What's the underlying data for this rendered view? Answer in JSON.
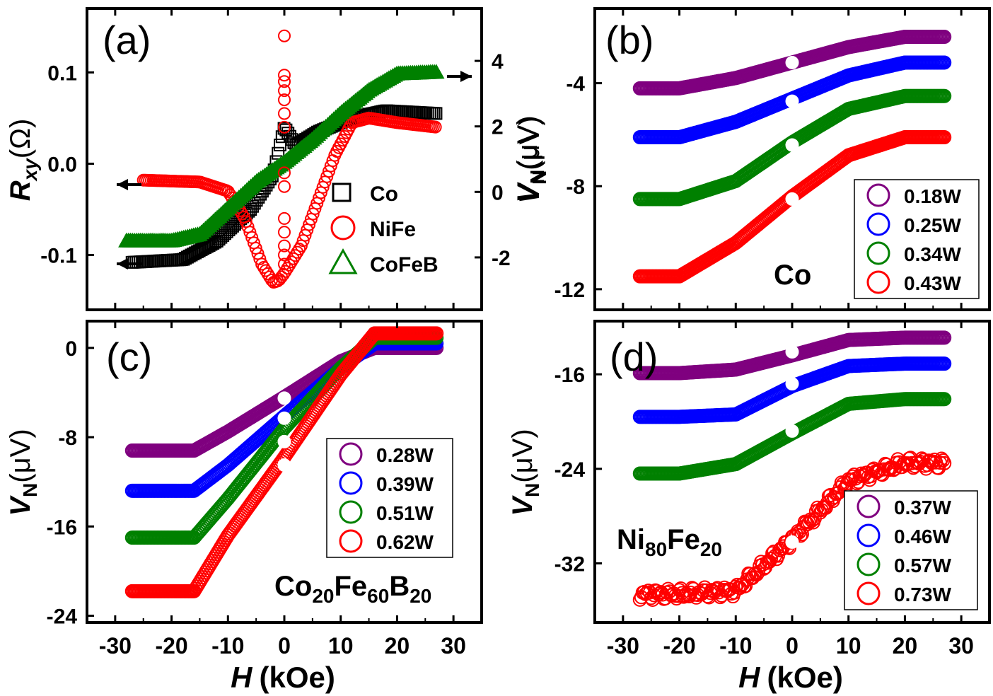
{
  "figure": {
    "shared_xlabel": "H",
    "shared_xunit": "(kOe)"
  },
  "chart_data": [
    {
      "panel": "a",
      "type": "scatter",
      "label": "(a)",
      "xlim": [
        -35,
        35
      ],
      "ylim": [
        -0.16,
        0.17
      ],
      "y2lim": [
        -3.6,
        5.6
      ],
      "ylabel_main": "R",
      "ylabel_sub": "xy",
      "ylabel_unit": "(Ω)",
      "y2label_main": "V",
      "y2label_sub": "N",
      "y2label_unit": "(μV)",
      "yticks": [
        "-0.1",
        "0.0",
        "0.1"
      ],
      "yticks_values": [
        -0.1,
        0.0,
        0.1
      ],
      "y2ticks": [
        "-2",
        "0",
        "2",
        "4"
      ],
      "y2ticks_values": [
        -2,
        0,
        2,
        4
      ],
      "legend_position": "bottom-right",
      "series": [
        {
          "name": "Co",
          "marker": "square",
          "color": "#000000",
          "axis": "left",
          "x": [
            -27,
            -18,
            -12,
            -6,
            -2,
            0,
            2,
            6,
            12,
            18,
            27
          ],
          "y": [
            -0.108,
            -0.105,
            -0.085,
            -0.05,
            -0.012,
            0.04,
            0.02,
            0.035,
            0.05,
            0.058,
            0.055
          ]
        },
        {
          "name": "NiFe",
          "marker": "circle",
          "color": "#ff0000",
          "axis": "left",
          "x": [
            -25,
            -15,
            -10,
            -7,
            -4,
            -2,
            -1,
            0,
            1,
            3,
            6,
            9,
            12,
            15,
            20,
            27
          ],
          "y": [
            -0.018,
            -0.02,
            -0.03,
            -0.06,
            -0.11,
            -0.13,
            -0.128,
            -0.12,
            -0.11,
            -0.09,
            -0.04,
            0.01,
            0.045,
            0.05,
            0.045,
            0.04
          ]
        },
        {
          "name": "CoFeB",
          "marker": "triangle",
          "color": "#008000",
          "axis": "right",
          "x": [
            -28,
            -20,
            -15,
            -10,
            -5,
            0,
            5,
            10,
            15,
            20,
            27
          ],
          "y": [
            -1.5,
            -1.5,
            -1.3,
            -0.5,
            0.3,
            0.9,
            1.6,
            2.4,
            3.1,
            3.6,
            3.65
          ]
        }
      ]
    },
    {
      "panel": "b",
      "type": "scatter",
      "label": "(b)",
      "annotation": "Co",
      "xlim": [
        -35,
        35
      ],
      "ylim": [
        -12.8,
        -1.1
      ],
      "ylabel_main": "V",
      "ylabel_sub": "N",
      "ylabel_unit": "(μV)",
      "yticks": [
        "-4",
        "-8",
        "-12"
      ],
      "yticks_values": [
        -4,
        -8,
        -12
      ],
      "legend_position": "bottom-right",
      "series": [
        {
          "name": "0.18W",
          "color": "#7f007f",
          "x": [
            -27,
            -20,
            -10,
            0,
            10,
            20,
            27
          ],
          "y": [
            -4.2,
            -4.2,
            -3.8,
            -3.2,
            -2.6,
            -2.2,
            -2.2
          ]
        },
        {
          "name": "0.25W",
          "color": "#0000ff",
          "x": [
            -27,
            -20,
            -10,
            0,
            10,
            20,
            27
          ],
          "y": [
            -6.1,
            -6.1,
            -5.5,
            -4.6,
            -3.7,
            -3.2,
            -3.2
          ]
        },
        {
          "name": "0.34W",
          "color": "#008000",
          "x": [
            -27,
            -20,
            -10,
            0,
            10,
            20,
            27
          ],
          "y": [
            -8.5,
            -8.5,
            -7.8,
            -6.3,
            -5.0,
            -4.5,
            -4.5
          ]
        },
        {
          "name": "0.43W",
          "color": "#ff0000",
          "x": [
            -27,
            -20,
            -10,
            0,
            10,
            20,
            27
          ],
          "y": [
            -11.5,
            -11.5,
            -10.2,
            -8.4,
            -6.8,
            -6.1,
            -6.1
          ]
        }
      ],
      "white_markers_y": [
        -3.2,
        -4.7,
        -6.4,
        -8.5
      ]
    },
    {
      "panel": "c",
      "type": "scatter",
      "label": "(c)",
      "annotation_main": "Co",
      "annotation_parts": [
        "Co",
        "20",
        "Fe",
        "60",
        "B",
        "20"
      ],
      "xlim": [
        -35,
        35
      ],
      "ylim": [
        -24.6,
        2.4
      ],
      "ylabel_main": "V",
      "ylabel_sub": "N",
      "ylabel_unit": "(μV)",
      "yticks": [
        "0",
        "-8",
        "-16",
        "-24"
      ],
      "yticks_values": [
        0,
        -8,
        -16,
        -24
      ],
      "legend_position": "middle-right",
      "series": [
        {
          "name": "0.28W",
          "color": "#7f007f",
          "x": [
            -27,
            -16,
            -10,
            0,
            10,
            16,
            27
          ],
          "y": [
            -9.2,
            -9.2,
            -7.5,
            -4.4,
            -1.2,
            0,
            0
          ]
        },
        {
          "name": "0.39W",
          "color": "#0000ff",
          "x": [
            -27,
            -16,
            -10,
            0,
            10,
            16,
            27
          ],
          "y": [
            -12.8,
            -12.8,
            -10.5,
            -6.1,
            -1.8,
            0.4,
            0.4
          ]
        },
        {
          "name": "0.51W",
          "color": "#008000",
          "x": [
            -27,
            -16,
            -10,
            0,
            10,
            16,
            27
          ],
          "y": [
            -17,
            -17,
            -13.5,
            -7.2,
            -1.8,
            0.9,
            0.9
          ]
        },
        {
          "name": "0.62W",
          "color": "#ff0000",
          "x": [
            -27,
            -16,
            -10,
            0,
            10,
            16,
            27
          ],
          "y": [
            -21.8,
            -21.8,
            -16.8,
            -9.8,
            -2.4,
            1.3,
            1.3
          ]
        }
      ],
      "white_markers_y": [
        -4.5,
        -6.3,
        -8.4,
        -10.5
      ]
    },
    {
      "panel": "d",
      "type": "scatter",
      "label": "(d)",
      "annotation_parts": [
        "Ni",
        "80",
        "Fe",
        "20"
      ],
      "xlim": [
        -35,
        35
      ],
      "ylim": [
        -37,
        -11.5
      ],
      "ylabel_main": "V",
      "ylabel_sub": "N",
      "ylabel_unit": "(μV)",
      "yticks": [
        "-16",
        "-24",
        "-32"
      ],
      "yticks_values": [
        -16,
        -24,
        -32
      ],
      "legend_position": "bottom-right",
      "series": [
        {
          "name": "0.37W",
          "color": "#7f007f",
          "x": [
            -27,
            -20,
            -10,
            0,
            10,
            20,
            27
          ],
          "y": [
            -15.9,
            -15.9,
            -15.6,
            -14.4,
            -13.1,
            -12.9,
            -12.9
          ]
        },
        {
          "name": "0.46W",
          "color": "#0000ff",
          "x": [
            -27,
            -20,
            -10,
            0,
            10,
            20,
            27
          ],
          "y": [
            -19.6,
            -19.6,
            -19.4,
            -17.0,
            -15.3,
            -15.1,
            -15.1
          ]
        },
        {
          "name": "0.57W",
          "color": "#008000",
          "x": [
            -27,
            -20,
            -10,
            0,
            10,
            20,
            27
          ],
          "y": [
            -24.4,
            -24.4,
            -23.6,
            -21.0,
            -18.5,
            -18.1,
            -18.1
          ]
        },
        {
          "name": "0.73W",
          "color": "#ff0000",
          "x": [
            -27,
            -20,
            -10,
            0,
            10,
            20,
            27
          ],
          "y": [
            -34.6,
            -34.6,
            -34.3,
            -30.0,
            -25.0,
            -23.5,
            -23.5
          ]
        }
      ],
      "white_markers_y": [
        -14.1,
        -16.8,
        -20.8,
        -30.2
      ]
    }
  ],
  "xticks": [
    "-30",
    "-20",
    "-10",
    "0",
    "10",
    "20",
    "30"
  ],
  "xticks_values": [
    -30,
    -20,
    -10,
    0,
    10,
    20,
    30
  ]
}
